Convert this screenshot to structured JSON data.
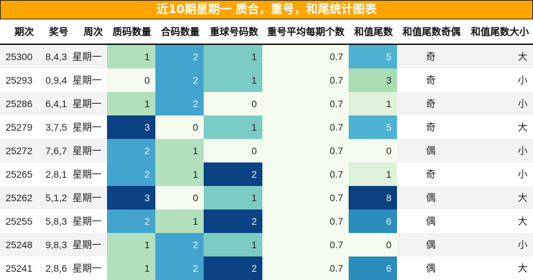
{
  "title": "近10期星期一 质合，重号，和尾统计图表",
  "columns": [
    "期次",
    "奖号",
    "周次",
    "质码数量",
    "合码数量",
    "重球号码数",
    "重号平均每期个数",
    "和值尾数",
    "和值尾数奇偶",
    "和值尾数大小"
  ],
  "rows": [
    {
      "issue": "25300",
      "numbers": "8,4,3",
      "weekday": "星期一",
      "prime": "1",
      "composite": "2",
      "repeat": "1",
      "avg": "0.7",
      "tail": "5",
      "parity": "奇",
      "size": "大"
    },
    {
      "issue": "25293",
      "numbers": "0,9,4",
      "weekday": "星期一",
      "prime": "0",
      "composite": "2",
      "repeat": "1",
      "avg": "0.7",
      "tail": "3",
      "parity": "奇",
      "size": "小"
    },
    {
      "issue": "25286",
      "numbers": "6,4,1",
      "weekday": "星期一",
      "prime": "1",
      "composite": "2",
      "repeat": "0",
      "avg": "0.7",
      "tail": "1",
      "parity": "奇",
      "size": "小"
    },
    {
      "issue": "25279",
      "numbers": "3,7,5",
      "weekday": "星期一",
      "prime": "3",
      "composite": "0",
      "repeat": "1",
      "avg": "0.7",
      "tail": "5",
      "parity": "奇",
      "size": "大"
    },
    {
      "issue": "25272",
      "numbers": "7,6,7",
      "weekday": "星期一",
      "prime": "2",
      "composite": "1",
      "repeat": "0",
      "avg": "0.7",
      "tail": "0",
      "parity": "偶",
      "size": "小"
    },
    {
      "issue": "25265",
      "numbers": "2,8,1",
      "weekday": "星期一",
      "prime": "2",
      "composite": "1",
      "repeat": "2",
      "avg": "0.7",
      "tail": "1",
      "parity": "奇",
      "size": "小"
    },
    {
      "issue": "25262",
      "numbers": "5,1,2",
      "weekday": "星期一",
      "prime": "3",
      "composite": "0",
      "repeat": "1",
      "avg": "0.7",
      "tail": "8",
      "parity": "偶",
      "size": "大"
    },
    {
      "issue": "25255",
      "numbers": "5,8,3",
      "weekday": "星期一",
      "prime": "2",
      "composite": "1",
      "repeat": "2",
      "avg": "0.7",
      "tail": "6",
      "parity": "偶",
      "size": "大"
    },
    {
      "issue": "25248",
      "numbers": "9,8,3",
      "weekday": "星期一",
      "prime": "1",
      "composite": "2",
      "repeat": "1",
      "avg": "0.7",
      "tail": "0",
      "parity": "偶",
      "size": "小"
    },
    {
      "issue": "25241",
      "numbers": "2,8,6",
      "weekday": "星期一",
      "prime": "1",
      "composite": "2",
      "repeat": "2",
      "avg": "0.7",
      "tail": "6",
      "parity": "偶",
      "size": "大"
    }
  ],
  "colors": {
    "title_bg": "#FFA500",
    "scale_0_3": {
      "0": "#f5fbef",
      "1": "#b2e0bd",
      "2": "#43a5cf",
      "3": "#0a4284"
    },
    "scale_0_2": {
      "0": "#f5fbef",
      "1": "#7bccc4",
      "2": "#0a4284"
    },
    "scale_tail": {
      "0": "#f5fbef",
      "1": "#dff2da",
      "3": "#a8ddb5",
      "5": "#4eb3d3",
      "6": "#2b8cbe",
      "8": "#084081"
    }
  }
}
